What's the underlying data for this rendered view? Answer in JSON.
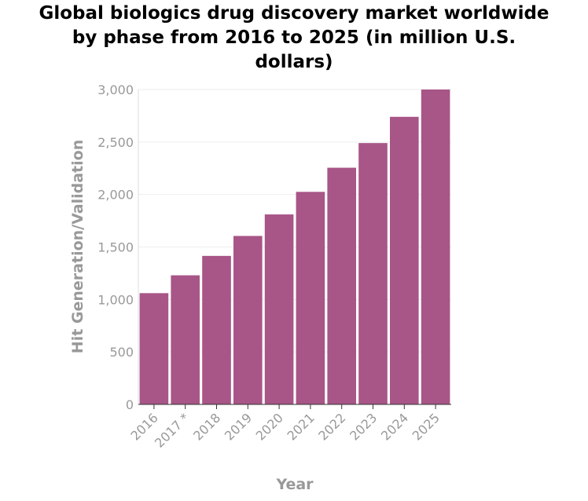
{
  "chart_data": {
    "type": "bar",
    "title_lines": [
      "Global biologics drug discovery market worldwide",
      "by phase from 2016 to 2025 (in million U.S.",
      "dollars)"
    ],
    "xlabel": "Year",
    "ylabel": "Hit Generation/Validation",
    "categories": [
      "2016",
      "2017 *",
      "2018",
      "2019",
      "2020",
      "2021",
      "2022",
      "2023",
      "2024",
      "2025"
    ],
    "values": [
      1060,
      1230,
      1415,
      1605,
      1810,
      2025,
      2255,
      2490,
      2740,
      3000
    ],
    "ylim": [
      0,
      3000
    ],
    "yticks": [
      0,
      500,
      1000,
      1500,
      2000,
      2500,
      3000
    ],
    "ytick_labels": [
      "0",
      "500",
      "1,000",
      "1,500",
      "2,000",
      "2,500",
      "3,000"
    ],
    "grid": true,
    "bar_color": "#a85587"
  }
}
